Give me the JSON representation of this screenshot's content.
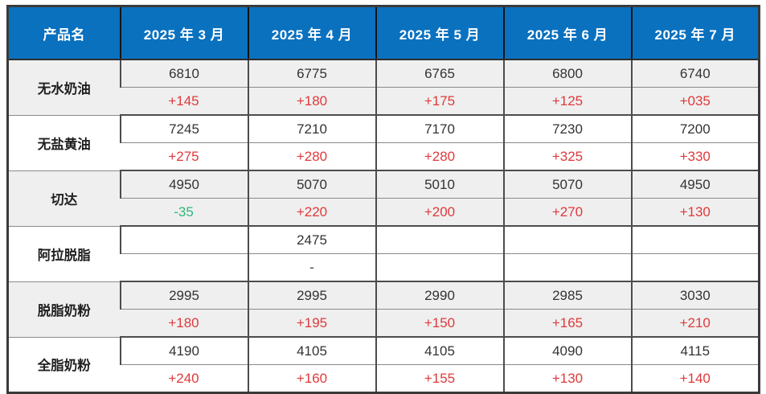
{
  "table": {
    "header": {
      "product_col": "产品名",
      "months": [
        "2025 年 3 月",
        "2025 年 4 月",
        "2025 年 5 月",
        "2025 年 6 月",
        "2025 年 7 月"
      ]
    },
    "rows": [
      {
        "product": "无水奶油",
        "values": [
          "6810",
          "6775",
          "6765",
          "6800",
          "6740"
        ],
        "changes": [
          "+145",
          "+180",
          "+175",
          "+125",
          "+035"
        ]
      },
      {
        "product": "无盐黄油",
        "values": [
          "7245",
          "7210",
          "7170",
          "7230",
          "7200"
        ],
        "changes": [
          "+275",
          "+280",
          "+280",
          "+325",
          "+330"
        ]
      },
      {
        "product": "切达",
        "values": [
          "4950",
          "5070",
          "5010",
          "5070",
          "4950"
        ],
        "changes": [
          "-35",
          "+220",
          "+200",
          "+270",
          "+130"
        ]
      },
      {
        "product": "阿拉脱脂",
        "values": [
          "",
          "2475",
          "",
          "",
          ""
        ],
        "changes": [
          "",
          "-",
          "",
          "",
          ""
        ]
      },
      {
        "product": "脱脂奶粉",
        "values": [
          "2995",
          "2995",
          "2990",
          "2985",
          "3030"
        ],
        "changes": [
          "+180",
          "+195",
          "+150",
          "+165",
          "+210"
        ]
      },
      {
        "product": "全脂奶粉",
        "values": [
          "4190",
          "4105",
          "4105",
          "4090",
          "4115"
        ],
        "changes": [
          "+240",
          "+160",
          "+155",
          "+130",
          "+140"
        ]
      }
    ],
    "colors": {
      "header_bg": "#0a71bf",
      "header_text": "#ffffff",
      "increase_red": "#e0393b",
      "decrease_green": "#2fb779",
      "value_text": "#333333",
      "shaded_band_bg": "#efefef",
      "border_dark": "#4c4c4c"
    }
  }
}
